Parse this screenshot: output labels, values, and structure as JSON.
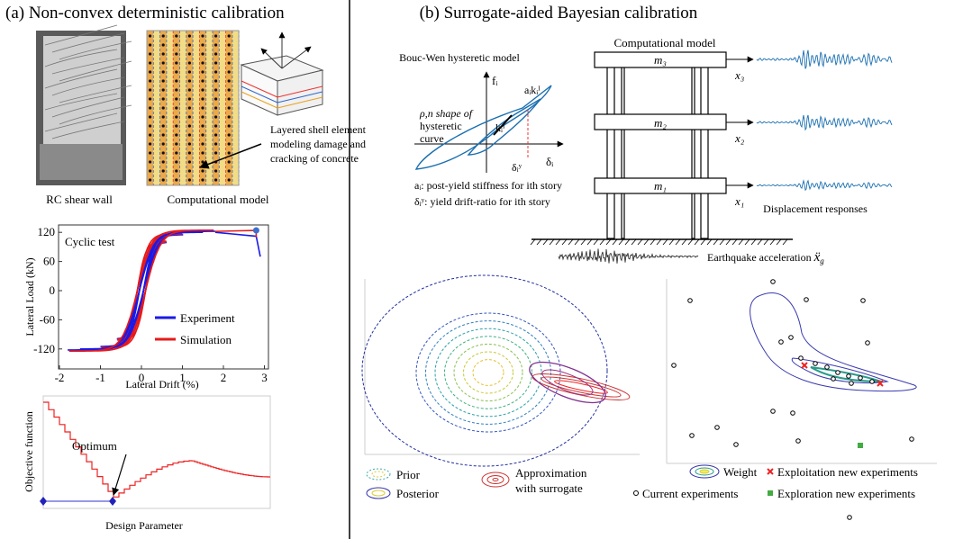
{
  "panel_a": {
    "title": "(a) Non-convex deterministic calibration",
    "photo_caption": "RC shear wall",
    "model_caption": "Computational model",
    "element_label": [
      "Layered shell element",
      "modeling damage and",
      "cracking of concrete"
    ],
    "cyclic_plot": {
      "title": "Cyclic test",
      "x_label": "Lateral Drift (%)",
      "y_label": "Lateral Load (kN)",
      "xticks": [
        -2,
        -1,
        0,
        1,
        2,
        3
      ],
      "yticks": [
        120,
        60,
        0,
        -60,
        -120
      ],
      "legend": [
        "Experiment",
        "Simulation"
      ]
    },
    "objective_plot": {
      "y_label": "Objective function",
      "x_label": "Design Parameter",
      "annotation": "Optimum"
    }
  },
  "panel_b": {
    "title": "(b) Surrogate-aided Bayesian calibration",
    "bouc_wen": {
      "title": "Bouc-Wen hysteretic model",
      "f_label": "fᵢ",
      "delta_label": "δᵢ",
      "k_label": "kᵢᴵ",
      "ak_label": "aᵢkᵢᴵ",
      "dy_label": "δᵢʸ",
      "shape_label": [
        "ρ,n shape of",
        "hysteretic",
        "curve"
      ],
      "notes": [
        "aᵢ: post-yield stiffness for ith story",
        "δᵢʸ: yield drift-ratio for ith story"
      ]
    },
    "model": {
      "title": "Computational model",
      "masses": [
        "m₃",
        "m₂",
        "m₁"
      ],
      "displacements": [
        "x₃",
        "x₂",
        "x₁"
      ],
      "response_label": "Displacement responses",
      "accel_label": "Earthquake acceleration",
      "accel_symbol": "ẍ",
      "accel_sub": "g"
    },
    "posterior_plot": {
      "legend": [
        "Prior",
        "Posterior",
        "Approximation",
        "with surrogate"
      ]
    },
    "experiment_plot": {
      "legend": [
        "Weight",
        "Exploitation new experiments",
        "Current experiments",
        "Exploration new experiments"
      ]
    }
  }
}
